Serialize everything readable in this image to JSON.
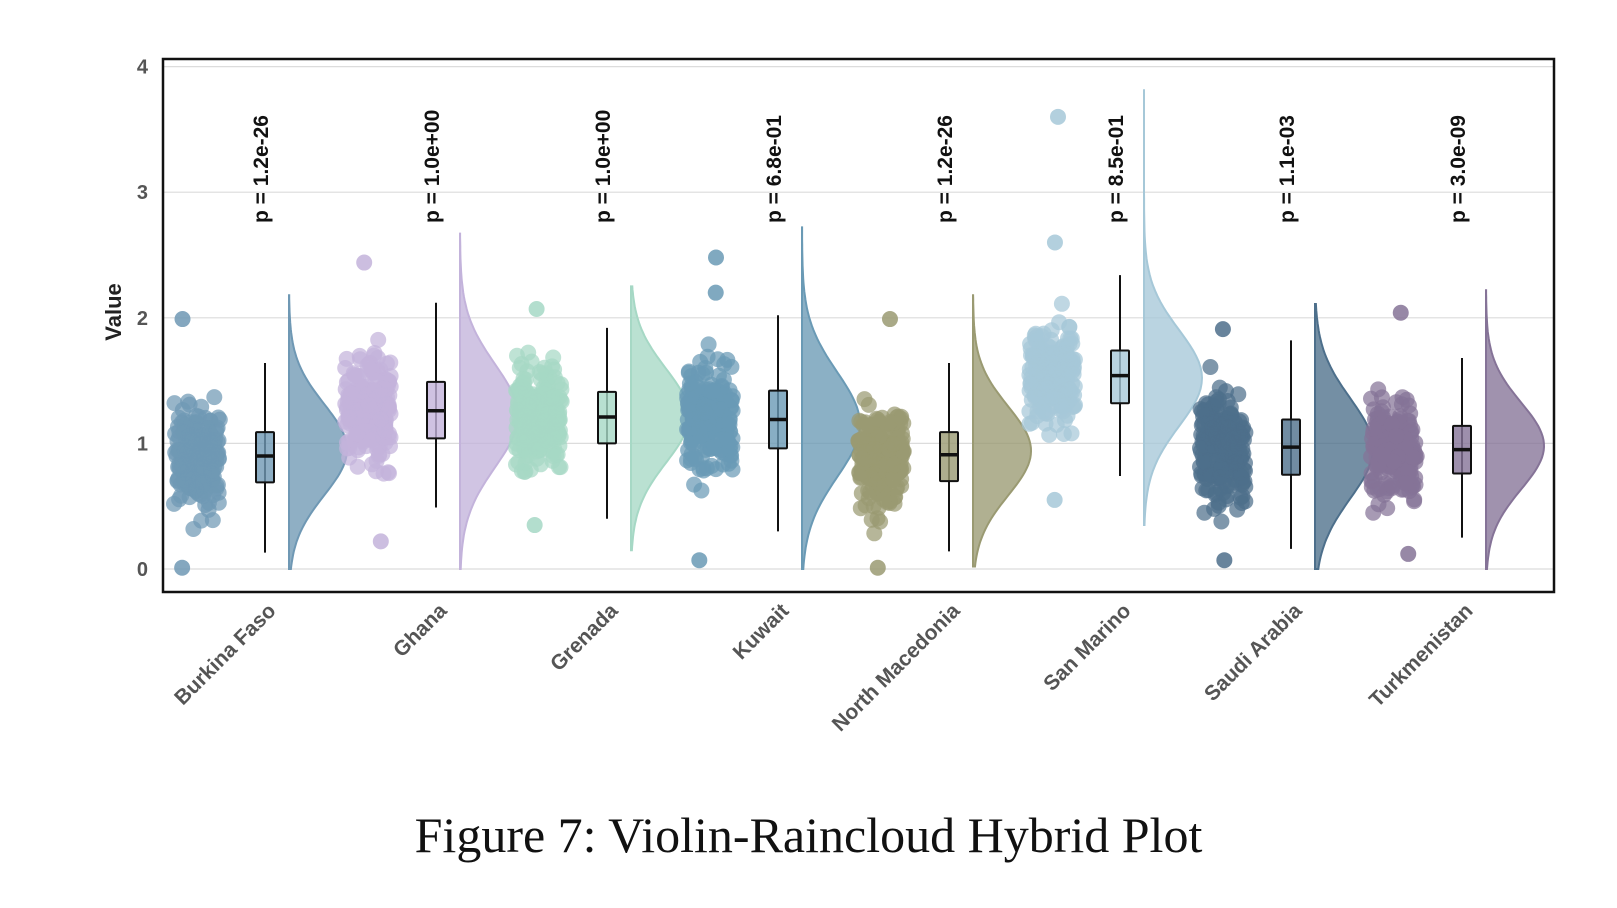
{
  "caption": "Figure 7: Violin-Raincloud Hybrid Plot",
  "chart_data": {
    "type": "violin-raincloud",
    "ylabel": "Value",
    "xlabel": "",
    "ylim": [
      -0.18,
      4.05
    ],
    "yticks": [
      0,
      1,
      2,
      3,
      4
    ],
    "grid": true,
    "groups": [
      {
        "name": "Burkina Faso",
        "color": "#6f98b4",
        "q1": 0.69,
        "median": 0.9,
        "q3": 1.09,
        "whisker_low": 0.13,
        "whisker_high": 1.64,
        "point_min": 0.01,
        "point_max": 1.99,
        "outliers": [],
        "violin_min": 0.0,
        "violin_max": 2.18,
        "violin_mode": 0.95,
        "p_value": "p = 1.2e-26"
      },
      {
        "name": "Ghana",
        "color": "#c3b3db",
        "q1": 1.04,
        "median": 1.26,
        "q3": 1.49,
        "whisker_low": 0.49,
        "whisker_high": 2.12,
        "point_min": 0.22,
        "point_max": 2.44,
        "outliers": [],
        "violin_min": 0.0,
        "violin_max": 2.67,
        "violin_mode": 1.22,
        "p_value": "p = 1.0e+00"
      },
      {
        "name": "Grenada",
        "color": "#a6d8c5",
        "q1": 1.0,
        "median": 1.21,
        "q3": 1.41,
        "whisker_low": 0.4,
        "whisker_high": 1.92,
        "point_min": 0.35,
        "point_max": 2.07,
        "outliers": [],
        "violin_min": 0.15,
        "violin_max": 2.25,
        "violin_mode": 1.22,
        "p_value": "p = 1.0e+00"
      },
      {
        "name": "Kuwait",
        "color": "#6a9ab5",
        "q1": 0.96,
        "median": 1.19,
        "q3": 1.42,
        "whisker_low": 0.3,
        "whisker_high": 2.02,
        "point_min": 0.07,
        "point_max": 2.2,
        "outliers": [
          2.48
        ],
        "violin_min": 0.0,
        "violin_max": 2.72,
        "violin_mode": 1.15,
        "p_value": "p = 6.8e-01"
      },
      {
        "name": "North Macedonia",
        "color": "#9a9a72",
        "q1": 0.7,
        "median": 0.91,
        "q3": 1.09,
        "whisker_low": 0.14,
        "whisker_high": 1.64,
        "point_min": 0.01,
        "point_max": 1.99,
        "outliers": [],
        "violin_min": 0.02,
        "violin_max": 2.18,
        "violin_mode": 0.94,
        "p_value": "p = 1.2e-26"
      },
      {
        "name": "San Marino",
        "color": "#a6c8d8",
        "q1": 1.32,
        "median": 1.54,
        "q3": 1.74,
        "whisker_low": 0.74,
        "whisker_high": 2.34,
        "point_min": 0.55,
        "point_max": 2.6,
        "outliers": [
          3.6
        ],
        "violin_min": 0.35,
        "violin_max": 3.82,
        "violin_mode": 1.52,
        "p_value": "p = 8.5e-01"
      },
      {
        "name": "Saudi Arabia",
        "color": "#4d6f8b",
        "q1": 0.75,
        "median": 0.97,
        "q3": 1.19,
        "whisker_low": 0.16,
        "whisker_high": 1.82,
        "point_min": 0.07,
        "point_max": 1.91,
        "outliers": [],
        "violin_min": 0.0,
        "violin_max": 2.11,
        "violin_mode": 0.96,
        "p_value": "p = 1.1e-03"
      },
      {
        "name": "Turkmenistan",
        "color": "#857397",
        "q1": 0.76,
        "median": 0.95,
        "q3": 1.14,
        "whisker_low": 0.25,
        "whisker_high": 1.68,
        "point_min": 0.12,
        "point_max": 2.04,
        "outliers": [],
        "violin_min": 0.0,
        "violin_max": 2.22,
        "violin_mode": 0.98,
        "p_value": "p = 3.0e-09"
      }
    ]
  }
}
